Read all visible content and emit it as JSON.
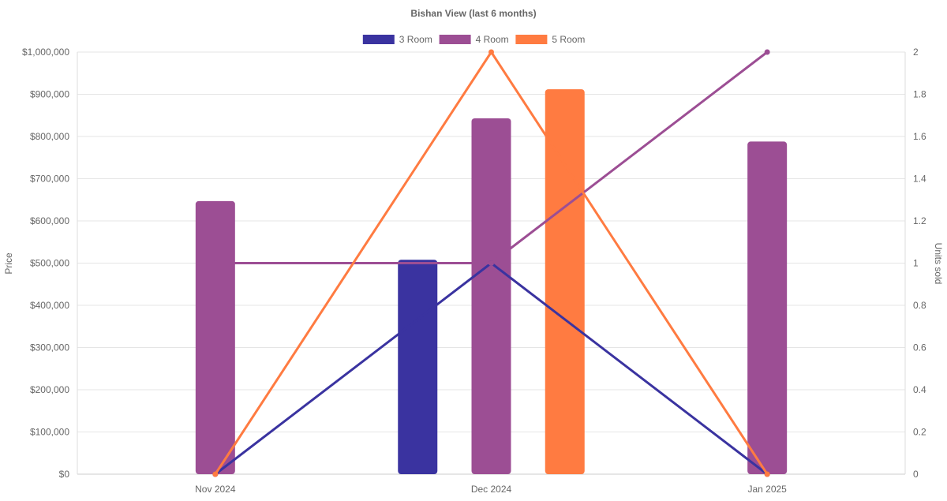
{
  "chart_data": {
    "type": "bar",
    "title": "Bishan View (last 6 months)",
    "categories": [
      "Nov 2024",
      "Dec 2024",
      "Jan 2025"
    ],
    "y_left": {
      "label": "Price",
      "range": [
        0,
        1000000
      ],
      "ticks": [
        "$0",
        "$100,000",
        "$200,000",
        "$300,000",
        "$400,000",
        "$500,000",
        "$600,000",
        "$700,000",
        "$800,000",
        "$900,000",
        "$1,000,000"
      ]
    },
    "y_right": {
      "label": "Units sold",
      "range": [
        0,
        2
      ],
      "ticks": [
        "0",
        "0.2",
        "0.4",
        "0.6",
        "0.8",
        "1",
        "1.2",
        "1.4",
        "1.6",
        "1.8",
        "2"
      ]
    },
    "grid": true,
    "legend_position": "top-center",
    "series": [
      {
        "name": "3 Room",
        "color": "#3a33a0",
        "price": [
          null,
          508000,
          null
        ],
        "units_sold": [
          0,
          1,
          0
        ]
      },
      {
        "name": "4 Room",
        "color": "#9c4e94",
        "price": [
          647000,
          843000,
          788000
        ],
        "units_sold": [
          1,
          1,
          2
        ]
      },
      {
        "name": "5 Room",
        "color": "#ff7b41",
        "price": [
          null,
          912000,
          null
        ],
        "units_sold": [
          0,
          2,
          0
        ]
      }
    ]
  }
}
